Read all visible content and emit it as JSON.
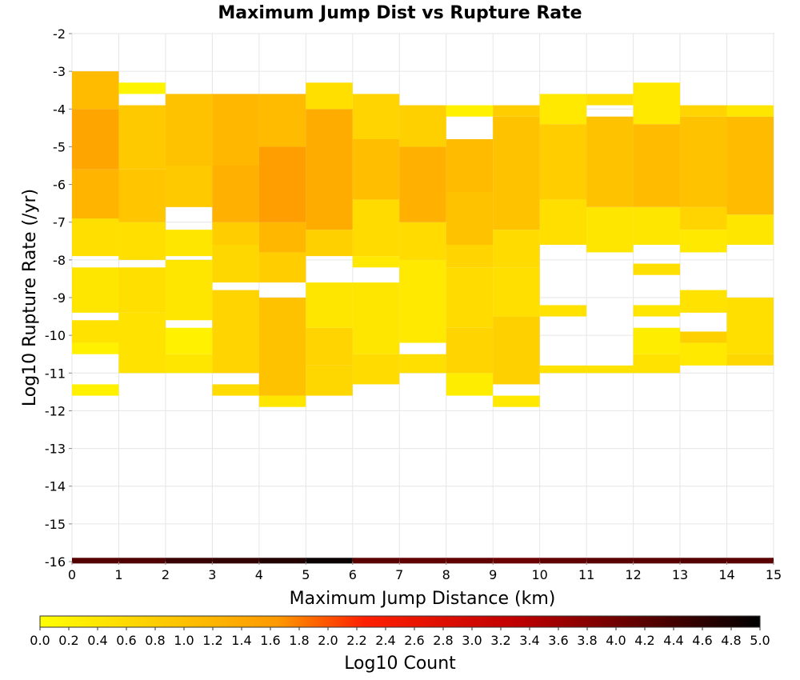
{
  "chart_data": {
    "type": "heatmap",
    "title": "Maximum Jump Dist vs Rupture Rate",
    "xlabel": "Maximum Jump Distance (km)",
    "ylabel": "Log10 Rupture Rate (/yr)",
    "xlim": [
      0,
      15
    ],
    "ylim": [
      -16,
      -2
    ],
    "xticks": [
      "0",
      "1",
      "2",
      "3",
      "4",
      "5",
      "6",
      "7",
      "8",
      "9",
      "10",
      "11",
      "12",
      "13",
      "14",
      "15"
    ],
    "yticks": [
      "-2",
      "-3",
      "-4",
      "-5",
      "-6",
      "-7",
      "-8",
      "-9",
      "-10",
      "-11",
      "-12",
      "-13",
      "-14",
      "-15",
      "-16"
    ],
    "grid": true,
    "x_bin_width": 1,
    "y_bin_height": 0.2,
    "colorbar": {
      "label": "Log10 Count",
      "range": [
        0,
        5
      ],
      "ticks": [
        "0.0",
        "0.2",
        "0.4",
        "0.6",
        "0.8",
        "1.0",
        "1.2",
        "1.4",
        "1.6",
        "1.8",
        "2.0",
        "2.2",
        "2.4",
        "2.6",
        "2.8",
        "3.0",
        "3.2",
        "3.4",
        "3.6",
        "3.8",
        "4.0",
        "4.2",
        "4.4",
        "4.6",
        "4.8",
        "5.0"
      ],
      "colormap": [
        "#ffff00",
        "#ff9900",
        "#ff0000",
        "#000000"
      ]
    },
    "bottom_row": {
      "y": -16,
      "values": [
        4.25,
        4.3,
        4.5,
        4.55,
        4.7,
        4.9,
        4.2,
        4.15,
        4.15,
        4.05,
        4.15,
        4.2,
        4.2,
        4.25,
        4.2
      ]
    },
    "columns": [
      {
        "x": 0,
        "segments": [
          {
            "y0": -11.6,
            "y1": -11.3,
            "v": 0.2
          },
          {
            "y0": -10.5,
            "y1": -10.2,
            "v": 0.2
          },
          {
            "y0": -10.2,
            "y1": -9.6,
            "v": 0.4
          },
          {
            "y0": -9.4,
            "y1": -8.2,
            "v": 0.35
          },
          {
            "y0": -7.9,
            "y1": -6.9,
            "v": 0.45
          },
          {
            "y0": -6.9,
            "y1": -5.6,
            "v": 1.05
          },
          {
            "y0": -5.6,
            "y1": -4.0,
            "v": 1.25
          },
          {
            "y0": -4.0,
            "y1": -3.0,
            "v": 0.95
          }
        ]
      },
      {
        "x": 1,
        "segments": [
          {
            "y0": -11.0,
            "y1": -9.4,
            "v": 0.4
          },
          {
            "y0": -9.4,
            "y1": -8.2,
            "v": 0.45
          },
          {
            "y0": -8.0,
            "y1": -7.0,
            "v": 0.45
          },
          {
            "y0": -7.0,
            "y1": -5.6,
            "v": 0.8
          },
          {
            "y0": -5.6,
            "y1": -3.9,
            "v": 0.75
          },
          {
            "y0": -3.6,
            "y1": -3.3,
            "v": 0.15
          }
        ]
      },
      {
        "x": 2,
        "segments": [
          {
            "y0": -11.0,
            "y1": -10.5,
            "v": 0.35
          },
          {
            "y0": -10.5,
            "y1": -9.8,
            "v": 0.2
          },
          {
            "y0": -9.6,
            "y1": -8.0,
            "v": 0.35
          },
          {
            "y0": -7.9,
            "y1": -7.2,
            "v": 0.35
          },
          {
            "y0": -6.6,
            "y1": -5.5,
            "v": 0.75
          },
          {
            "y0": -5.5,
            "y1": -3.6,
            "v": 0.85
          }
        ]
      },
      {
        "x": 3,
        "segments": [
          {
            "y0": -11.6,
            "y1": -11.3,
            "v": 0.5
          },
          {
            "y0": -11.0,
            "y1": -8.8,
            "v": 0.6
          },
          {
            "y0": -8.6,
            "y1": -7.6,
            "v": 0.55
          },
          {
            "y0": -7.6,
            "y1": -7.0,
            "v": 0.7
          },
          {
            "y0": -7.0,
            "y1": -5.5,
            "v": 1.1
          },
          {
            "y0": -5.5,
            "y1": -3.6,
            "v": 1.0
          }
        ]
      },
      {
        "x": 4,
        "segments": [
          {
            "y0": -11.9,
            "y1": -11.6,
            "v": 0.35
          },
          {
            "y0": -11.6,
            "y1": -9.0,
            "v": 0.85
          },
          {
            "y0": -8.6,
            "y1": -7.8,
            "v": 0.7
          },
          {
            "y0": -7.8,
            "y1": -7.0,
            "v": 1.0
          },
          {
            "y0": -7.0,
            "y1": -5.0,
            "v": 1.35
          },
          {
            "y0": -5.0,
            "y1": -3.6,
            "v": 0.95
          }
        ]
      },
      {
        "x": 5,
        "segments": [
          {
            "y0": -11.6,
            "y1": -10.8,
            "v": 0.55
          },
          {
            "y0": -10.8,
            "y1": -9.8,
            "v": 0.6
          },
          {
            "y0": -9.8,
            "y1": -8.6,
            "v": 0.35
          },
          {
            "y0": -7.9,
            "y1": -7.2,
            "v": 0.65
          },
          {
            "y0": -7.2,
            "y1": -4.0,
            "v": 1.15
          },
          {
            "y0": -4.0,
            "y1": -3.3,
            "v": 0.45
          }
        ]
      },
      {
        "x": 6,
        "segments": [
          {
            "y0": -11.3,
            "y1": -10.5,
            "v": 0.5
          },
          {
            "y0": -10.5,
            "y1": -8.6,
            "v": 0.35
          },
          {
            "y0": -8.2,
            "y1": -7.9,
            "v": 0.3
          },
          {
            "y0": -7.9,
            "y1": -6.4,
            "v": 0.5
          },
          {
            "y0": -6.4,
            "y1": -4.8,
            "v": 0.9
          },
          {
            "y0": -4.8,
            "y1": -3.6,
            "v": 0.6
          }
        ]
      },
      {
        "x": 7,
        "segments": [
          {
            "y0": -11.0,
            "y1": -10.5,
            "v": 0.45
          },
          {
            "y0": -10.2,
            "y1": -8.0,
            "v": 0.3
          },
          {
            "y0": -8.0,
            "y1": -7.0,
            "v": 0.5
          },
          {
            "y0": -7.0,
            "y1": -5.0,
            "v": 1.1
          },
          {
            "y0": -5.0,
            "y1": -3.9,
            "v": 0.65
          }
        ]
      },
      {
        "x": 8,
        "segments": [
          {
            "y0": -11.6,
            "y1": -11.0,
            "v": 0.25
          },
          {
            "y0": -11.0,
            "y1": -9.8,
            "v": 0.6
          },
          {
            "y0": -9.8,
            "y1": -8.2,
            "v": 0.5
          },
          {
            "y0": -8.2,
            "y1": -7.6,
            "v": 0.6
          },
          {
            "y0": -7.6,
            "y1": -6.2,
            "v": 0.85
          },
          {
            "y0": -6.2,
            "y1": -4.8,
            "v": 0.95
          },
          {
            "y0": -4.2,
            "y1": -3.9,
            "v": 0.2
          }
        ]
      },
      {
        "x": 9,
        "segments": [
          {
            "y0": -11.9,
            "y1": -11.6,
            "v": 0.3
          },
          {
            "y0": -11.3,
            "y1": -9.5,
            "v": 0.65
          },
          {
            "y0": -9.5,
            "y1": -8.2,
            "v": 0.45
          },
          {
            "y0": -8.2,
            "y1": -7.2,
            "v": 0.5
          },
          {
            "y0": -7.2,
            "y1": -4.2,
            "v": 0.85
          },
          {
            "y0": -4.2,
            "y1": -3.9,
            "v": 0.7
          }
        ]
      },
      {
        "x": 10,
        "segments": [
          {
            "y0": -11.0,
            "y1": -10.8,
            "v": 0.4
          },
          {
            "y0": -9.5,
            "y1": -9.2,
            "v": 0.4
          },
          {
            "y0": -7.6,
            "y1": -6.4,
            "v": 0.45
          },
          {
            "y0": -6.4,
            "y1": -4.4,
            "v": 0.7
          },
          {
            "y0": -4.4,
            "y1": -3.6,
            "v": 0.3
          }
        ]
      },
      {
        "x": 11,
        "segments": [
          {
            "y0": -11.0,
            "y1": -10.8,
            "v": 0.4
          },
          {
            "y0": -7.8,
            "y1": -6.6,
            "v": 0.35
          },
          {
            "y0": -6.6,
            "y1": -4.2,
            "v": 0.85
          },
          {
            "y0": -3.9,
            "y1": -3.6,
            "v": 0.45
          }
        ]
      },
      {
        "x": 12,
        "segments": [
          {
            "y0": -11.0,
            "y1": -10.5,
            "v": 0.4
          },
          {
            "y0": -10.5,
            "y1": -9.8,
            "v": 0.25
          },
          {
            "y0": -9.5,
            "y1": -9.2,
            "v": 0.35
          },
          {
            "y0": -8.4,
            "y1": -8.1,
            "v": 0.45
          },
          {
            "y0": -7.6,
            "y1": -6.6,
            "v": 0.35
          },
          {
            "y0": -6.6,
            "y1": -4.4,
            "v": 0.95
          },
          {
            "y0": -4.4,
            "y1": -3.3,
            "v": 0.3
          }
        ]
      },
      {
        "x": 13,
        "segments": [
          {
            "y0": -10.8,
            "y1": -10.2,
            "v": 0.3
          },
          {
            "y0": -10.2,
            "y1": -9.9,
            "v": 0.65
          },
          {
            "y0": -9.4,
            "y1": -8.8,
            "v": 0.4
          },
          {
            "y0": -7.8,
            "y1": -7.2,
            "v": 0.3
          },
          {
            "y0": -7.2,
            "y1": -6.6,
            "v": 0.6
          },
          {
            "y0": -6.6,
            "y1": -4.2,
            "v": 0.85
          },
          {
            "y0": -4.2,
            "y1": -3.9,
            "v": 0.6
          }
        ]
      },
      {
        "x": 14,
        "segments": [
          {
            "y0": -10.8,
            "y1": -10.5,
            "v": 0.55
          },
          {
            "y0": -10.5,
            "y1": -9.0,
            "v": 0.45
          },
          {
            "y0": -7.6,
            "y1": -6.8,
            "v": 0.35
          },
          {
            "y0": -6.8,
            "y1": -4.2,
            "v": 0.95
          },
          {
            "y0": -4.2,
            "y1": -3.9,
            "v": 0.35
          }
        ]
      }
    ]
  }
}
